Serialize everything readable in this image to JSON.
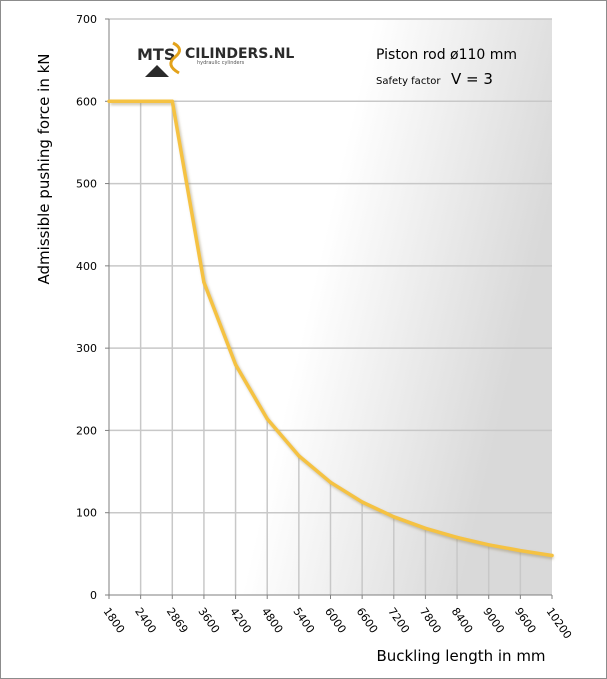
{
  "chart_data": {
    "type": "line",
    "ylabel": "Admissible pushing force in kN",
    "xlabel": "Buckling length in mm",
    "categories": [
      "1800",
      "2400",
      "2869",
      "3600",
      "4200",
      "4800",
      "5400",
      "6000",
      "6600",
      "7200",
      "7800",
      "8400",
      "9000",
      "9600",
      "10200"
    ],
    "yticks": [
      "0",
      "100",
      "200",
      "300",
      "400",
      "500",
      "600",
      "700"
    ],
    "ylim": [
      0,
      700
    ],
    "grid": true,
    "series": [
      {
        "color": "#f5c242",
        "values": [
          600,
          600,
          600,
          380,
          280,
          214,
          169,
          137,
          113,
          95,
          81,
          70,
          61,
          54,
          48
        ]
      }
    ],
    "annotations": {
      "rod": "Piston rod ø110 mm",
      "safety_label": "Safety factor",
      "safety_value": "V = 3"
    }
  },
  "logo": {
    "mts": "MTS",
    "name": "CILINDERS.NL",
    "tagline": "hydraulic cylinders"
  },
  "colors": {
    "line": "#f5c242",
    "grid": "#c8c8c8",
    "logo_accent": "#e3a21a"
  }
}
